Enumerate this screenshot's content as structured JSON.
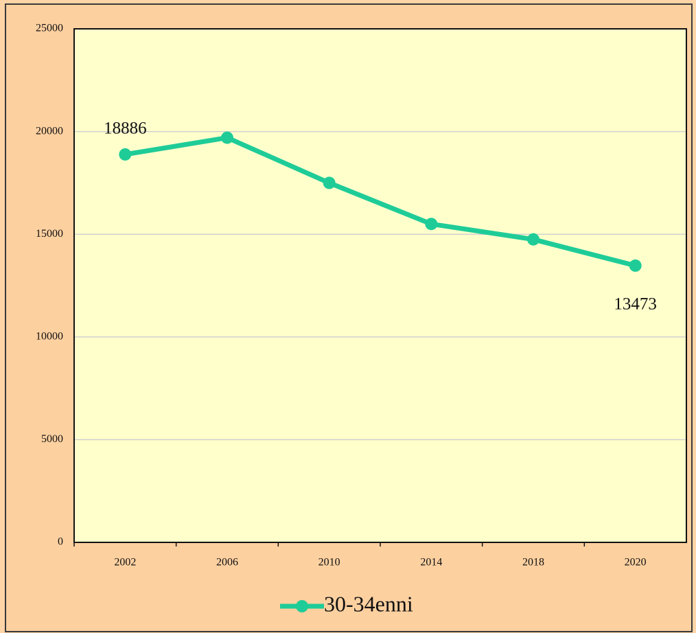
{
  "chart_data": {
    "type": "line",
    "categories": [
      "2002",
      "2006",
      "2010",
      "2014",
      "2018",
      "2020"
    ],
    "series": [
      {
        "name": "30-34enni",
        "color": "#1fcc98",
        "values": [
          18886,
          19700,
          17500,
          15500,
          14750,
          13473
        ],
        "value_labels": [
          "18886",
          null,
          null,
          null,
          null,
          "13473"
        ]
      }
    ],
    "ylim": [
      0,
      25000
    ],
    "yticks": [
      0,
      5000,
      10000,
      15000,
      20000,
      25000
    ],
    "grid": true,
    "legend": "bottom"
  }
}
